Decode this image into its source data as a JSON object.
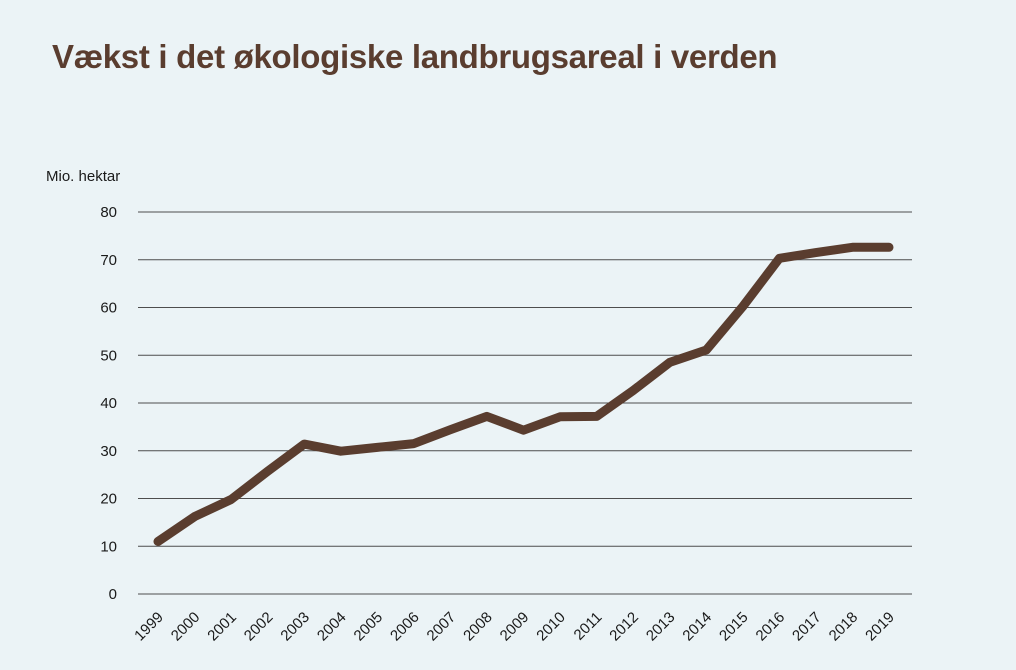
{
  "title": "Vækst i det økologiske landbrugsareal i verden",
  "colors": {
    "background": "#ebf3f6",
    "title": "#5a3d2f",
    "line": "#5a3d2f",
    "grid": "#4d4d4d"
  },
  "chart_data": {
    "type": "line",
    "title": "Vækst i det økologiske landbrugsareal i verden",
    "ylabel": "Mio. hektar",
    "xlabel": "",
    "ylim": [
      0,
      80
    ],
    "yticks": [
      0,
      10,
      20,
      30,
      40,
      50,
      60,
      70,
      80
    ],
    "grid": true,
    "legend": "none",
    "x": [
      "1999",
      "2000",
      "2001",
      "2002",
      "2003",
      "2004",
      "2005",
      "2006",
      "2007",
      "2008",
      "2009",
      "2010",
      "2011",
      "2012",
      "2013",
      "2014",
      "2015",
      "2016",
      "2017",
      "2018",
      "2019"
    ],
    "series": [
      {
        "values": [
          11,
          16.2,
          19.8,
          25.7,
          31.4,
          29.9,
          30.7,
          31.5,
          34.4,
          37.2,
          34.3,
          37.1,
          37.2,
          42.6,
          48.5,
          51.1,
          60.2,
          70.3,
          71.5,
          72.6,
          72.6
        ]
      }
    ]
  }
}
